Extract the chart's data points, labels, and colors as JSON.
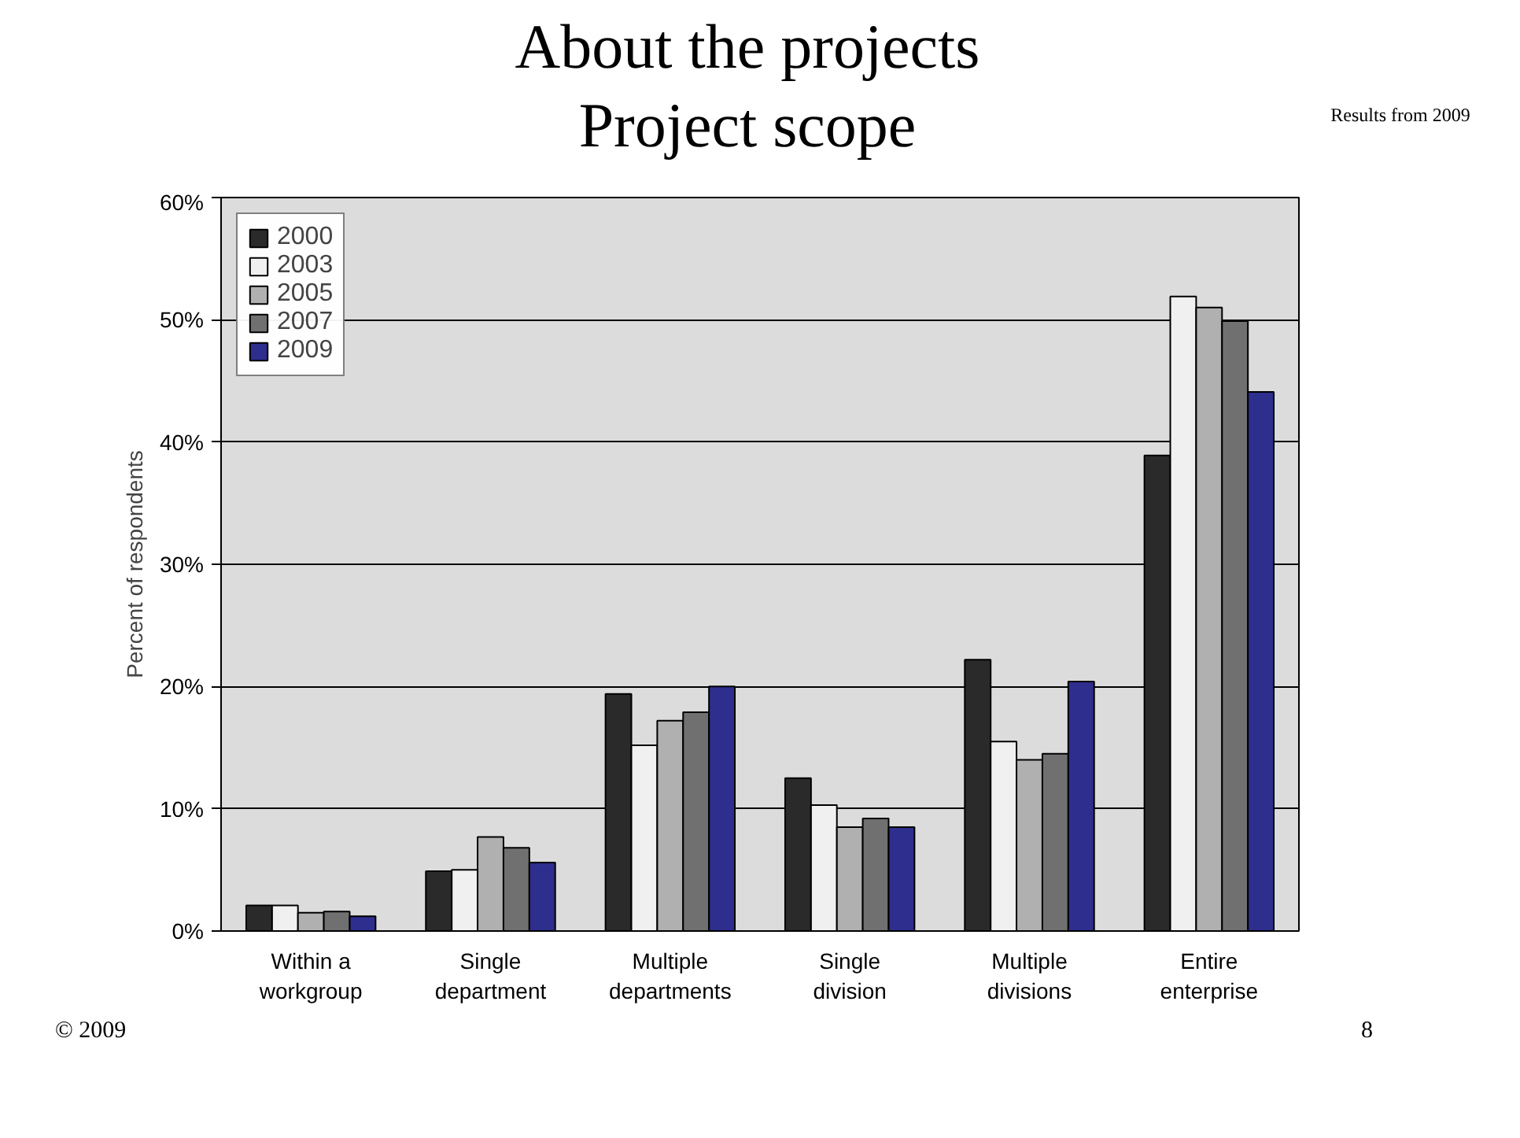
{
  "chart_data": {
    "type": "bar",
    "title": "About the projects",
    "subtitle": "Project scope",
    "ylabel": "Percent of respondents",
    "annotations": [
      "Results from 2009",
      "© 2009",
      "8"
    ],
    "categories": [
      "Within a workgroup",
      "Single department",
      "Multiple departments",
      "Single division",
      "Multiple divisions",
      "Entire enterprise"
    ],
    "series": [
      {
        "name": "2000",
        "color": "#2a2a2a",
        "values": [
          2.1,
          4.9,
          19.4,
          12.5,
          22.2,
          38.9
        ]
      },
      {
        "name": "2003",
        "color": "#f0f0f0",
        "values": [
          2.1,
          5.0,
          15.2,
          10.3,
          15.5,
          51.9
        ]
      },
      {
        "name": "2005",
        "color": "#b0b0b0",
        "values": [
          1.5,
          7.7,
          17.2,
          8.5,
          14.0,
          51.0
        ]
      },
      {
        "name": "2007",
        "color": "#707070",
        "values": [
          1.6,
          6.8,
          17.9,
          9.2,
          14.5,
          49.9
        ]
      },
      {
        "name": "2009",
        "color": "#2e2e8e",
        "values": [
          1.2,
          5.6,
          20.0,
          8.5,
          20.4,
          44.1
        ]
      }
    ],
    "ylim": [
      0,
      60
    ],
    "yticks": [
      {
        "value": 0,
        "label": "0%"
      },
      {
        "value": 10,
        "label": "10%"
      },
      {
        "value": 20,
        "label": "20%"
      },
      {
        "value": 30,
        "label": "30%"
      },
      {
        "value": 40,
        "label": "40%"
      },
      {
        "value": 50,
        "label": "50%"
      },
      {
        "value": 60,
        "label": "60%"
      }
    ],
    "grid": "y",
    "legend": "top left"
  }
}
